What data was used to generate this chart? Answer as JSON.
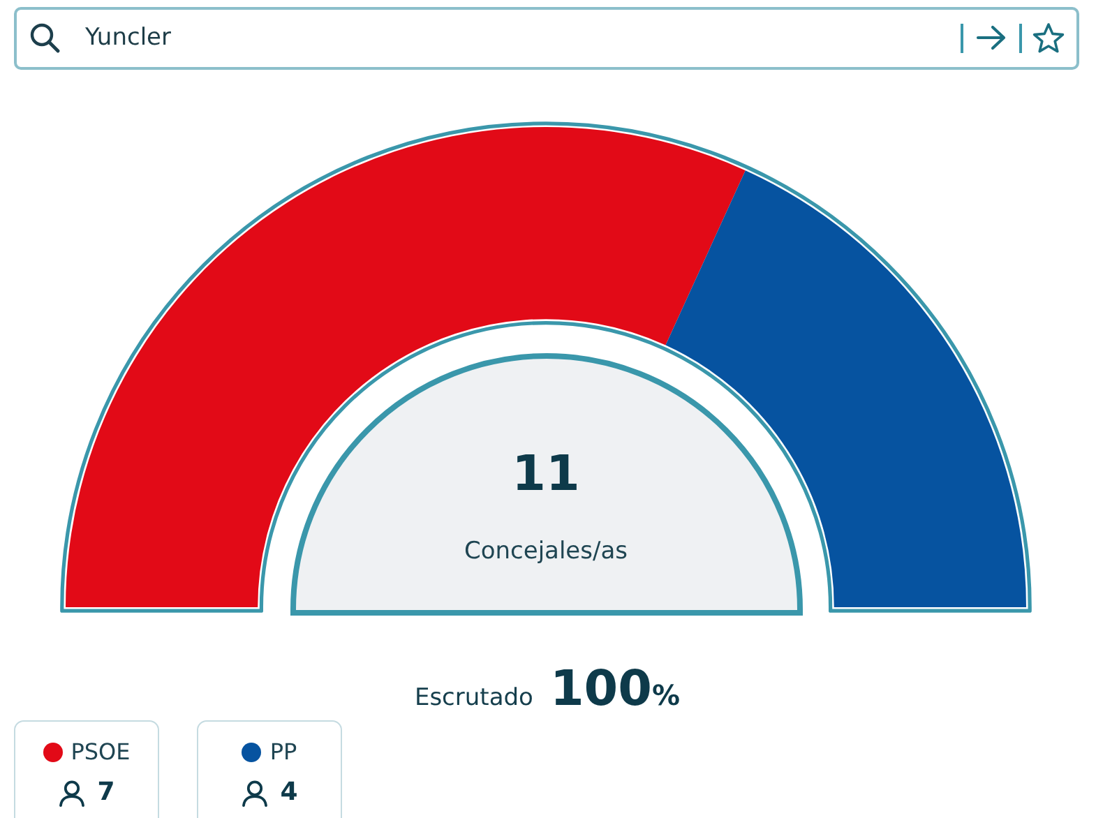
{
  "chart_data": {
    "type": "donut",
    "title": "Yuncler",
    "categories": [
      "PSOE",
      "PP"
    ],
    "values": [
      7,
      4
    ],
    "colors": [
      "#e20a17",
      "#0653a0"
    ],
    "annotations": [
      "11",
      "Concejales/as",
      "Escrutado",
      "100%"
    ],
    "data_labels": true,
    "legend": "bottom left"
  }
}
